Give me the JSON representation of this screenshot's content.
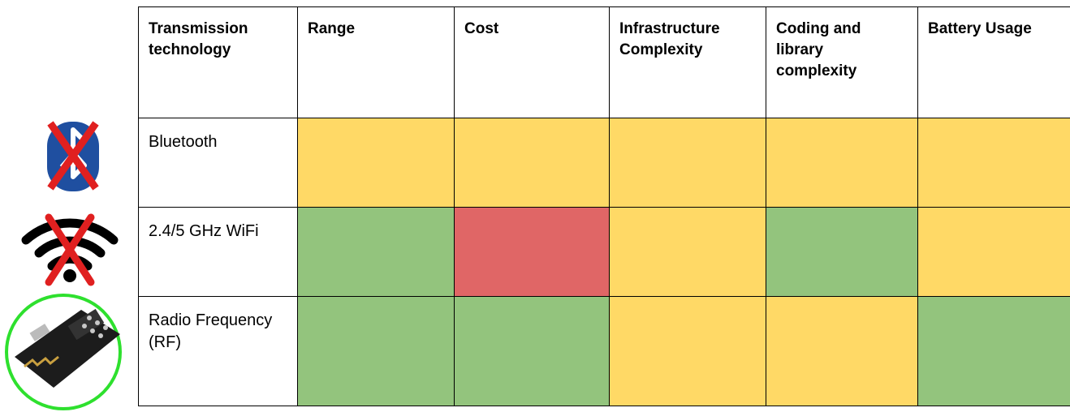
{
  "table": {
    "header": [
      "Transmission technology",
      "Range",
      "Cost",
      "Infrastructure Complexity",
      "Coding and library complexity",
      "Battery Usage"
    ],
    "rows": [
      {
        "label": "Bluetooth",
        "colors": [
          "#ffd966",
          "#ffd966",
          "#ffd966",
          "#ffd966",
          "#ffd966"
        ]
      },
      {
        "label": "2.4/5 GHz WiFi",
        "colors": [
          "#93c47d",
          "#e06666",
          "#ffd966",
          "#93c47d",
          "#ffd966"
        ]
      },
      {
        "label": "Radio Frequency (RF)",
        "colors": [
          "#93c47d",
          "#93c47d",
          "#ffd966",
          "#ffd966",
          "#93c47d"
        ]
      }
    ]
  }
}
